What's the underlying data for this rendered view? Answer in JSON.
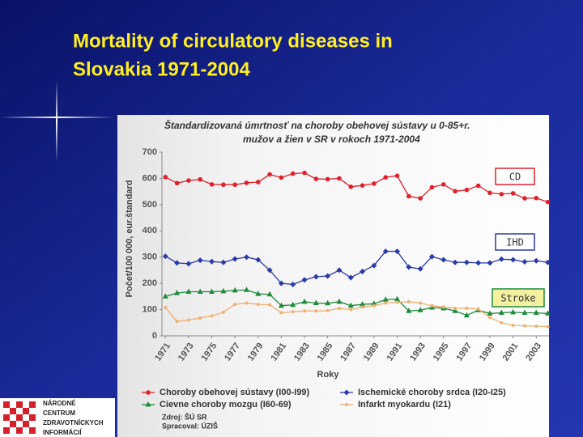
{
  "slide": {
    "title": [
      "Mortality of circulatory diseases in",
      "Slovakia 1971-2004"
    ],
    "logo": [
      "NÁRODNÉ",
      "CENTRUM",
      "ZDRAVOTNÍCKYCH",
      "INFORMÁCIÍ"
    ]
  },
  "chart_data": {
    "type": "line",
    "title": [
      "Štandardizovaná úmrtnosť na choroby obehovej sústavy u 0-85+r.",
      "mužov a žien v SR v rokoch 1971-2004"
    ],
    "y_label": "Počet/100 000, eur.štandard",
    "x_label": "Roky",
    "x": [
      1971,
      1972,
      1973,
      1974,
      1975,
      1976,
      1977,
      1978,
      1979,
      1980,
      1981,
      1982,
      1983,
      1984,
      1985,
      1986,
      1987,
      1988,
      1989,
      1990,
      1991,
      1992,
      1993,
      1994,
      1995,
      1996,
      1997,
      1998,
      1999,
      2000,
      2001,
      2002,
      2003,
      2004
    ],
    "xlim": [
      1970.7,
      2004.1
    ],
    "xticks": [
      1971,
      1973,
      1975,
      1977,
      1979,
      1981,
      1983,
      1985,
      1987,
      1989,
      1991,
      1993,
      1995,
      1997,
      1999,
      2001,
      2003
    ],
    "ylim": [
      0,
      700
    ],
    "yticks": [
      0,
      100,
      200,
      300,
      400,
      500,
      600,
      700
    ],
    "grid": false,
    "series": [
      {
        "name": "Choroby obehovej sústavy (I00-I99)",
        "color": "#e0202a",
        "marker": "circle",
        "values": [
          605,
          582,
          592,
          596,
          577,
          576,
          576,
          583,
          586,
          615,
          603,
          618,
          621,
          598,
          597,
          600,
          568,
          573,
          580,
          604,
          610,
          532,
          524,
          566,
          577,
          551,
          556,
          572,
          545,
          540,
          543,
          524,
          525,
          510
        ]
      },
      {
        "name": "Ischemické choroby srdca (I20-I25)",
        "color": "#2a3aa8",
        "marker": "diamond",
        "values": [
          303,
          278,
          275,
          288,
          283,
          280,
          293,
          300,
          290,
          250,
          200,
          196,
          213,
          225,
          228,
          250,
          222,
          245,
          268,
          322,
          322,
          262,
          255,
          302,
          290,
          280,
          280,
          278,
          278,
          292,
          290,
          282,
          286,
          280
        ]
      },
      {
        "name": "Cievne choroby mozgu (I60-69)",
        "color": "#1e8a3a",
        "marker": "triangle",
        "values": [
          150,
          163,
          168,
          168,
          168,
          170,
          173,
          175,
          160,
          158,
          115,
          118,
          130,
          125,
          124,
          130,
          115,
          120,
          122,
          138,
          140,
          95,
          98,
          108,
          105,
          95,
          78,
          98,
          85,
          88,
          90,
          88,
          88,
          85
        ]
      },
      {
        "name": "Infarkt myokardu (I21)",
        "color": "#f0b070",
        "marker": "small-circle",
        "values": [
          108,
          55,
          60,
          68,
          76,
          90,
          120,
          125,
          120,
          118,
          88,
          92,
          95,
          95,
          96,
          105,
          100,
          110,
          115,
          125,
          128,
          130,
          125,
          115,
          110,
          105,
          105,
          102,
          70,
          50,
          40,
          38,
          37,
          35
        ]
      }
    ],
    "annotations": [
      {
        "text": "CD",
        "color": "#e0202a",
        "background": "#ffffff"
      },
      {
        "text": "IHD",
        "color": "#2a3aa8",
        "background": "#ffffff"
      },
      {
        "text": "Stroke",
        "color": "#1e8a3a",
        "background": "#f4f0a0"
      }
    ],
    "source": [
      "Zdroj: ŠÚ SR",
      "Spracoval: ÚZIŠ"
    ]
  }
}
